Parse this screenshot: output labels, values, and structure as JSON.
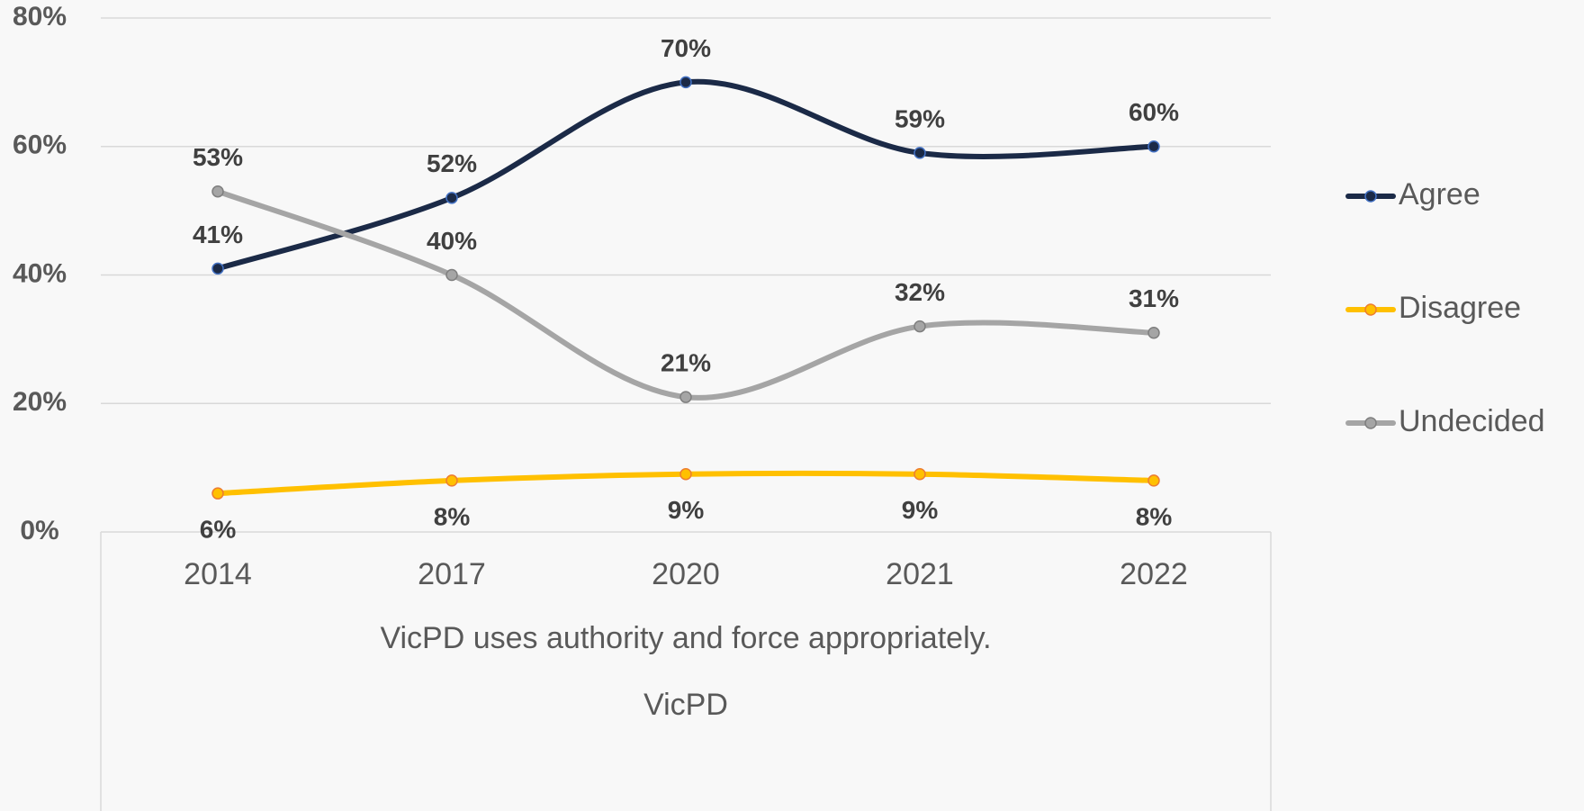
{
  "chart_data": {
    "type": "line",
    "categories": [
      "2014",
      "2017",
      "2020",
      "2021",
      "2022"
    ],
    "x_axis_labels": [
      "VicPD uses authority and force appropriately.",
      "VicPD"
    ],
    "ylim": [
      0,
      80
    ],
    "yticks": [
      {
        "value": 0,
        "label": "0%"
      },
      {
        "value": 20,
        "label": "20%"
      },
      {
        "value": 40,
        "label": "40%"
      },
      {
        "value": 60,
        "label": "60%"
      },
      {
        "value": 80,
        "label": "80%"
      }
    ],
    "grid": true,
    "smooth": true,
    "legend": "right",
    "series": [
      {
        "name": "Agree",
        "color": "#1b2a47",
        "marker_edge": "#4472c4",
        "label_position": "above",
        "values": [
          41,
          52,
          70,
          59,
          60
        ],
        "value_labels": [
          "41%",
          "52%",
          "70%",
          "59%",
          "60%"
        ]
      },
      {
        "name": "Disagree",
        "color": "#ffc000",
        "marker_edge": "#ed7d31",
        "label_position": "below",
        "values": [
          6,
          8,
          9,
          9,
          8
        ],
        "value_labels": [
          "6%",
          "8%",
          "9%",
          "9%",
          "8%"
        ]
      },
      {
        "name": "Undecided",
        "color": "#a5a5a5",
        "marker_edge": "#7f7f7f",
        "label_position": "above",
        "values": [
          53,
          40,
          21,
          32,
          31
        ],
        "value_labels": [
          "53%",
          "40%",
          "21%",
          "32%",
          "31%"
        ]
      }
    ]
  }
}
